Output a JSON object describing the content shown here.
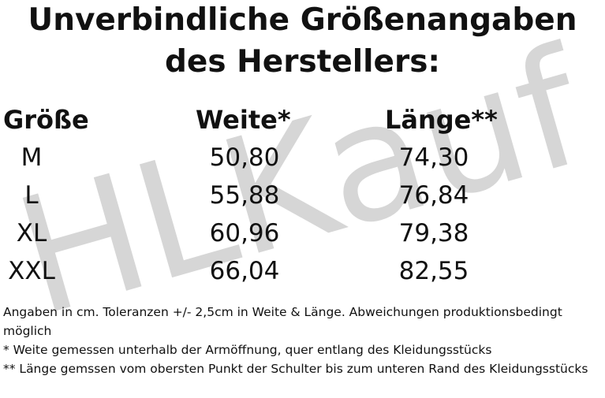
{
  "title_lines": [
    "Unverbindliche Größenangaben",
    "des Herstellers:"
  ],
  "watermark": "HLKauf",
  "table": {
    "headers": [
      "Größe",
      "Weite*",
      "Länge**"
    ],
    "rows": [
      [
        "M",
        "50,80",
        "74,30"
      ],
      [
        "L",
        "55,88",
        "76,84"
      ],
      [
        "XL",
        "60,96",
        "79,38"
      ],
      [
        "XXL",
        "66,04",
        "82,55"
      ]
    ]
  },
  "notes": [
    "Angaben in cm.  Toleranzen +/- 2,5cm in Weite & Länge. Abweichungen produktionsbedingt möglich",
    "* Weite gemessen unterhalb der Armöffnung, quer entlang des Kleidungsstücks",
    "** Länge gemssen vom obersten Punkt der Schulter bis zum unteren Rand des Kleidungsstücks"
  ]
}
